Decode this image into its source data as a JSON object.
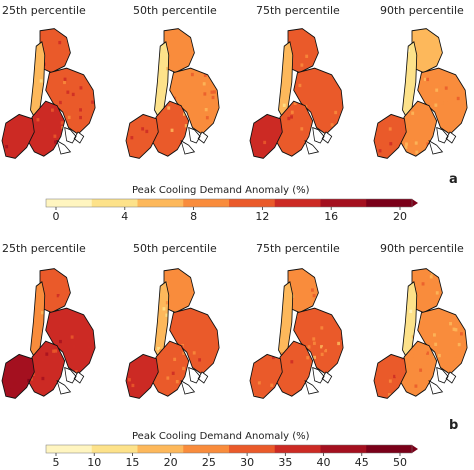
{
  "rows": [
    {
      "panel_letter": "a",
      "titles": [
        "25th percentile",
        "50th percentile",
        "75th percentile",
        "90th percentile"
      ],
      "intensity": [
        0.62,
        0.48,
        0.55,
        0.42
      ],
      "colorbar": {
        "label": "Peak Cooling Demand Anomaly (%)",
        "ticks": [
          "0",
          "4",
          "8",
          "12",
          "16",
          "20"
        ],
        "min": 0,
        "max": 20,
        "colors": [
          "#fff5c0",
          "#fde28a",
          "#fdb85b",
          "#f98c3c",
          "#ea5a2a",
          "#cc2a24",
          "#a4101f",
          "#7a0019"
        ]
      }
    },
    {
      "panel_letter": "b",
      "titles": [
        "25th percentile",
        "50th percentile",
        "75th percentile",
        "90th percentile"
      ],
      "intensity": [
        0.66,
        0.52,
        0.5,
        0.44
      ],
      "colorbar": {
        "label": "Peak Cooling Demand Anomaly (%)",
        "ticks": [
          "5",
          "10",
          "15",
          "20",
          "25",
          "30",
          "35",
          "40",
          "45",
          "50"
        ],
        "min": 5,
        "max": 50,
        "colors": [
          "#fff5c0",
          "#fde28a",
          "#fdb85b",
          "#f98c3c",
          "#ea5a2a",
          "#cc2a24",
          "#a4101f",
          "#7a0019"
        ]
      }
    }
  ]
}
